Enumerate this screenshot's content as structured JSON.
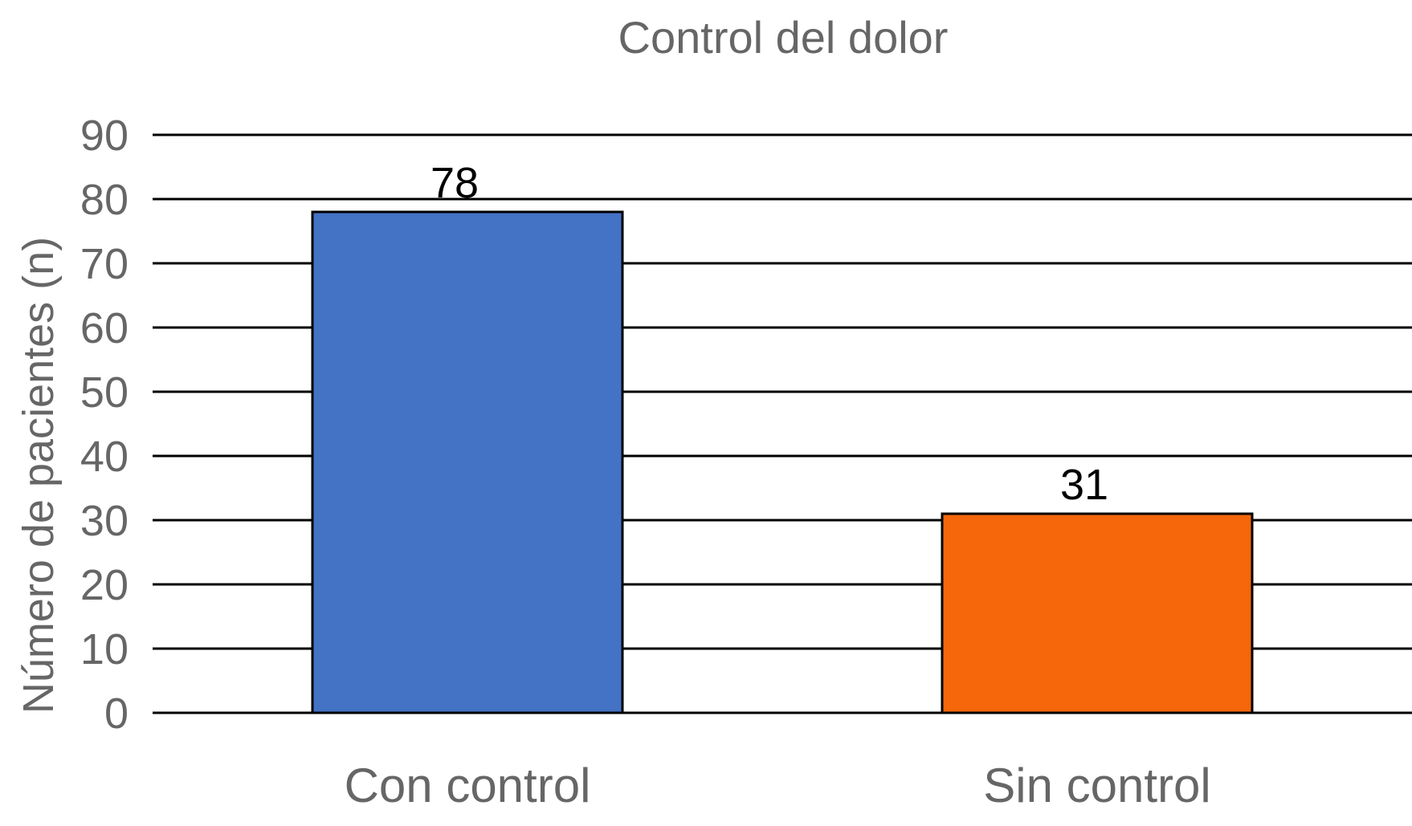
{
  "chart_data": {
    "type": "bar",
    "title": "Control del dolor",
    "xlabel": "",
    "ylabel": "Número de pacientes (n)",
    "categories": [
      "Con control",
      "Sin control"
    ],
    "values": [
      78,
      31
    ],
    "data_labels": [
      "78",
      "31"
    ],
    "bar_colors": [
      "#4472C4",
      "#F5670A"
    ],
    "ylim": [
      0,
      90
    ],
    "yticks": [
      0,
      10,
      20,
      30,
      40,
      50,
      60,
      70,
      80,
      90
    ],
    "ytick_labels": [
      "0",
      "10",
      "20",
      "30",
      "40",
      "50",
      "60",
      "70",
      "80",
      "90"
    ],
    "grid": true,
    "legend": "none"
  }
}
